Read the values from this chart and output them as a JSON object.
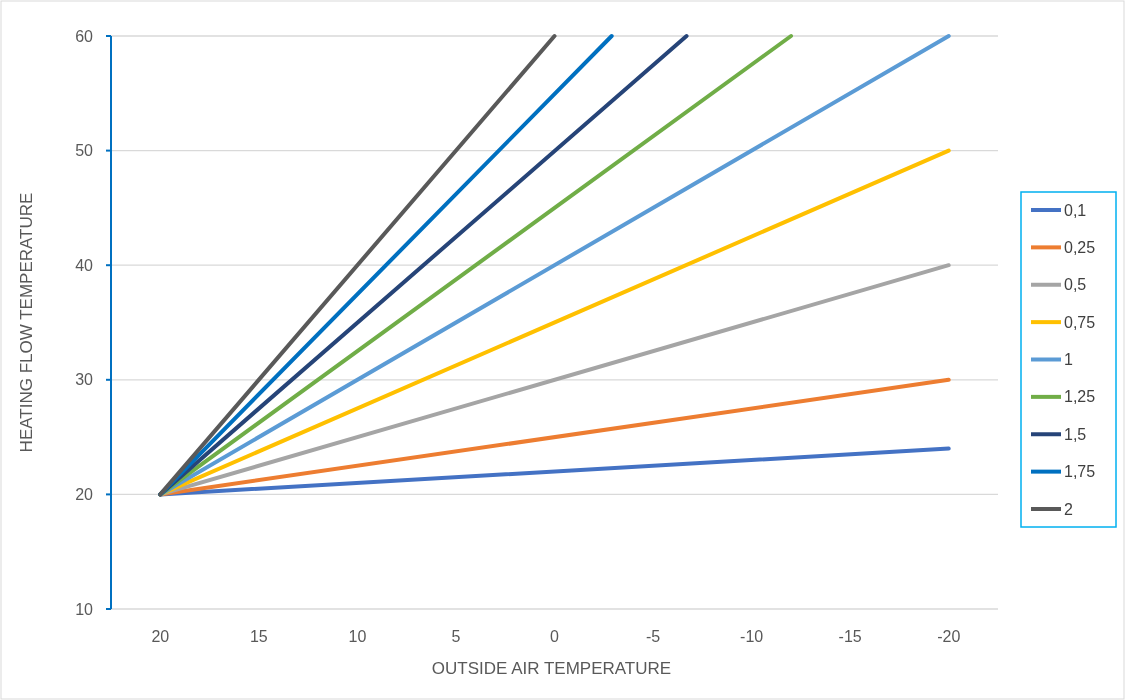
{
  "chart_data": {
    "type": "line",
    "xlabel": "OUTSIDE AIR TEMPERATURE",
    "ylabel": "HEATING FLOW TEMPERATURE",
    "xlim": [
      22.5,
      -22.5
    ],
    "xticks": [
      20,
      15,
      10,
      5,
      0,
      -5,
      -10,
      -15,
      -20
    ],
    "ylim": [
      10,
      60
    ],
    "yticks": [
      10,
      20,
      30,
      40,
      50,
      60
    ],
    "grid": "y",
    "legend": "right",
    "marker": "none",
    "line_style": "solid",
    "series": [
      {
        "name": "0,1",
        "color": "#4472c4",
        "x": [
          20,
          -20
        ],
        "values": [
          20,
          24
        ]
      },
      {
        "name": "0,25",
        "color": "#ed7d31",
        "x": [
          20,
          -20
        ],
        "values": [
          20,
          30
        ]
      },
      {
        "name": "0,5",
        "color": "#a5a5a5",
        "x": [
          20,
          -20
        ],
        "values": [
          20,
          40
        ]
      },
      {
        "name": "0,75",
        "color": "#ffc000",
        "x": [
          20,
          -20
        ],
        "values": [
          20,
          50
        ]
      },
      {
        "name": "1",
        "color": "#5b9bd5",
        "x": [
          20,
          -20
        ],
        "values": [
          20,
          60
        ]
      },
      {
        "name": "1,25",
        "color": "#70ad47",
        "x": [
          20,
          -12
        ],
        "values": [
          20,
          60
        ]
      },
      {
        "name": "1,5",
        "color": "#264478",
        "x": [
          20,
          -6.7
        ],
        "values": [
          20,
          60
        ]
      },
      {
        "name": "1,75",
        "color": "#0070c0",
        "x": [
          20,
          -2.9
        ],
        "values": [
          20,
          60
        ]
      },
      {
        "name": "2",
        "color": "#595959",
        "x": [
          20,
          0
        ],
        "values": [
          20,
          60
        ]
      }
    ]
  }
}
